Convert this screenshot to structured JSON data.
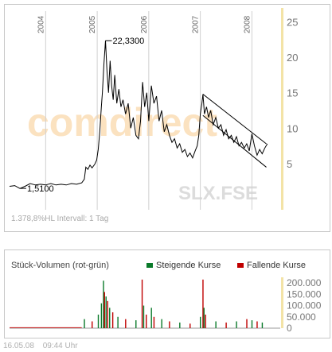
{
  "chart_data": [
    {
      "type": "line",
      "title": "",
      "xlabel": "",
      "ylabel": "",
      "x_year_labels": [
        "2004",
        "2005",
        "2006",
        "2007",
        "2008"
      ],
      "yticks": [
        5,
        10,
        15,
        20,
        25
      ],
      "ylim": [
        -1.5,
        26.5
      ],
      "xlim": [
        2003.3,
        2008.55
      ],
      "grid": "vertical",
      "annotations": {
        "high": {
          "label": "22,3300",
          "x": 2005.16,
          "y": 22.33
        },
        "low": {
          "label": "1,5100",
          "x": 2003.5,
          "y": 1.51
        }
      },
      "trend_channel": {
        "upper": [
          [
            2007.05,
            14.8
          ],
          [
            2008.28,
            7.8
          ]
        ],
        "lower": [
          [
            2007.05,
            11.8
          ],
          [
            2008.28,
            4.5
          ]
        ]
      },
      "watermark": "comdirect",
      "symbol": "SLX.FSE",
      "info_text": "1.378,8%HL Intervall: 1 Tag",
      "series": [
        {
          "values": [
            [
              2003.3,
              1.8
            ],
            [
              2003.4,
              1.9
            ],
            [
              2003.5,
              1.5
            ],
            [
              2003.6,
              1.8
            ],
            [
              2003.7,
              2.2
            ],
            [
              2003.8,
              2.0
            ],
            [
              2003.9,
              2.1
            ],
            [
              2004.0,
              2.0
            ],
            [
              2004.1,
              2.2
            ],
            [
              2004.2,
              2.0
            ],
            [
              2004.3,
              2.1
            ],
            [
              2004.4,
              2.0
            ],
            [
              2004.5,
              2.2
            ],
            [
              2004.6,
              2.1
            ],
            [
              2004.7,
              2.3
            ],
            [
              2004.75,
              2.8
            ],
            [
              2004.78,
              4.5
            ],
            [
              2004.82,
              4.2
            ],
            [
              2004.86,
              4.8
            ],
            [
              2004.9,
              4.4
            ],
            [
              2004.95,
              4.9
            ],
            [
              2004.99,
              5.5
            ],
            [
              2005.02,
              7.0
            ],
            [
              2005.05,
              9.5
            ],
            [
              2005.08,
              13.0
            ],
            [
              2005.1,
              15.0
            ],
            [
              2005.13,
              19.0
            ],
            [
              2005.16,
              22.33
            ],
            [
              2005.19,
              18.0
            ],
            [
              2005.22,
              15.0
            ],
            [
              2005.25,
              19.5
            ],
            [
              2005.28,
              16.0
            ],
            [
              2005.31,
              14.0
            ],
            [
              2005.34,
              17.5
            ],
            [
              2005.38,
              13.5
            ],
            [
              2005.42,
              15.5
            ],
            [
              2005.46,
              13.0
            ],
            [
              2005.5,
              14.0
            ],
            [
              2005.55,
              12.0
            ],
            [
              2005.6,
              13.5
            ],
            [
              2005.65,
              10.0
            ],
            [
              2005.7,
              11.5
            ],
            [
              2005.75,
              9.0
            ],
            [
              2005.8,
              8.5
            ],
            [
              2005.84,
              11.0
            ],
            [
              2005.88,
              16.5
            ],
            [
              2005.92,
              13.0
            ],
            [
              2005.96,
              15.0
            ],
            [
              2006.0,
              11.0
            ],
            [
              2006.05,
              16.0
            ],
            [
              2006.1,
              13.5
            ],
            [
              2006.15,
              14.5
            ],
            [
              2006.2,
              11.0
            ],
            [
              2006.25,
              12.5
            ],
            [
              2006.3,
              9.5
            ],
            [
              2006.35,
              10.5
            ],
            [
              2006.4,
              9.0
            ],
            [
              2006.45,
              8.0
            ],
            [
              2006.5,
              8.5
            ],
            [
              2006.55,
              7.2
            ],
            [
              2006.6,
              7.8
            ],
            [
              2006.65,
              6.6
            ],
            [
              2006.7,
              7.0
            ],
            [
              2006.75,
              6.0
            ],
            [
              2006.8,
              6.5
            ],
            [
              2006.85,
              5.8
            ],
            [
              2006.9,
              6.8
            ],
            [
              2006.94,
              7.5
            ],
            [
              2006.97,
              9.0
            ],
            [
              2007.0,
              12.0
            ],
            [
              2007.03,
              13.5
            ],
            [
              2007.05,
              14.8
            ],
            [
              2007.08,
              12.0
            ],
            [
              2007.12,
              13.0
            ],
            [
              2007.16,
              11.5
            ],
            [
              2007.2,
              12.5
            ],
            [
              2007.25,
              10.5
            ],
            [
              2007.3,
              11.5
            ],
            [
              2007.35,
              10.0
            ],
            [
              2007.4,
              10.5
            ],
            [
              2007.45,
              9.0
            ],
            [
              2007.5,
              9.8
            ],
            [
              2007.55,
              8.5
            ],
            [
              2007.6,
              9.0
            ],
            [
              2007.65,
              8.0
            ],
            [
              2007.7,
              8.8
            ],
            [
              2007.75,
              7.5
            ],
            [
              2007.8,
              8.0
            ],
            [
              2007.85,
              7.2
            ],
            [
              2007.9,
              7.8
            ],
            [
              2007.95,
              6.8
            ],
            [
              2008.0,
              9.2
            ],
            [
              2008.05,
              7.5
            ],
            [
              2008.1,
              6.2
            ],
            [
              2008.15,
              7.0
            ],
            [
              2008.2,
              6.4
            ],
            [
              2008.25,
              7.2
            ],
            [
              2008.3,
              7.8
            ]
          ]
        }
      ]
    },
    {
      "type": "bar",
      "title": "Stück-Volumen (rot-grün)",
      "yticks": [
        0,
        50000,
        100000,
        150000,
        200000
      ],
      "ytick_labels": [
        "0",
        "50.000",
        "100.000",
        "150.000",
        "200.000"
      ],
      "ylim": [
        0,
        225000
      ],
      "xlim": [
        2003.3,
        2008.55
      ],
      "legend": [
        {
          "name": "Steigende Kurse",
          "color": "#0a7a2a"
        },
        {
          "name": "Fallende Kurse",
          "color": "#c00000"
        }
      ],
      "legend_position": "top-right",
      "baseline": {
        "x0": 2003.3,
        "x1": 2004.7,
        "value": 4000
      },
      "spikes": [
        {
          "x": 2004.75,
          "v": 40000,
          "d": "up"
        },
        {
          "x": 2004.9,
          "v": 30000,
          "d": "down"
        },
        {
          "x": 2005.02,
          "v": 60000,
          "d": "up"
        },
        {
          "x": 2005.08,
          "v": 110000,
          "d": "up"
        },
        {
          "x": 2005.12,
          "v": 210000,
          "d": "up"
        },
        {
          "x": 2005.14,
          "v": 160000,
          "d": "down"
        },
        {
          "x": 2005.17,
          "v": 140000,
          "d": "up"
        },
        {
          "x": 2005.2,
          "v": 120000,
          "d": "down"
        },
        {
          "x": 2005.24,
          "v": 90000,
          "d": "up"
        },
        {
          "x": 2005.3,
          "v": 70000,
          "d": "down"
        },
        {
          "x": 2005.4,
          "v": 50000,
          "d": "up"
        },
        {
          "x": 2005.55,
          "v": 40000,
          "d": "down"
        },
        {
          "x": 2005.75,
          "v": 35000,
          "d": "up"
        },
        {
          "x": 2005.87,
          "v": 215000,
          "d": "down"
        },
        {
          "x": 2005.9,
          "v": 100000,
          "d": "up"
        },
        {
          "x": 2005.95,
          "v": 60000,
          "d": "down"
        },
        {
          "x": 2006.05,
          "v": 90000,
          "d": "up"
        },
        {
          "x": 2006.1,
          "v": 50000,
          "d": "down"
        },
        {
          "x": 2006.25,
          "v": 40000,
          "d": "up"
        },
        {
          "x": 2006.4,
          "v": 30000,
          "d": "down"
        },
        {
          "x": 2006.6,
          "v": 25000,
          "d": "up"
        },
        {
          "x": 2006.8,
          "v": 20000,
          "d": "down"
        },
        {
          "x": 2007.0,
          "v": 50000,
          "d": "up"
        },
        {
          "x": 2007.05,
          "v": 215000,
          "d": "down"
        },
        {
          "x": 2007.07,
          "v": 90000,
          "d": "up"
        },
        {
          "x": 2007.1,
          "v": 60000,
          "d": "down"
        },
        {
          "x": 2007.3,
          "v": 30000,
          "d": "up"
        },
        {
          "x": 2007.5,
          "v": 25000,
          "d": "down"
        },
        {
          "x": 2007.7,
          "v": 30000,
          "d": "up"
        },
        {
          "x": 2007.9,
          "v": 40000,
          "d": "down"
        },
        {
          "x": 2008.0,
          "v": 35000,
          "d": "up"
        },
        {
          "x": 2008.1,
          "v": 30000,
          "d": "down"
        },
        {
          "x": 2008.2,
          "v": 25000,
          "d": "up"
        }
      ]
    }
  ],
  "footer": {
    "date": "16.05.08",
    "time": "09:44 Uhr"
  },
  "colors": {
    "price_line": "#000000",
    "grid": "#d0d0d0",
    "axis_bar": "#f3e3a6",
    "watermark": "#fbe2c0",
    "symbol": "#dcdcdc",
    "up": "#0a7a2a",
    "down": "#c00000"
  }
}
